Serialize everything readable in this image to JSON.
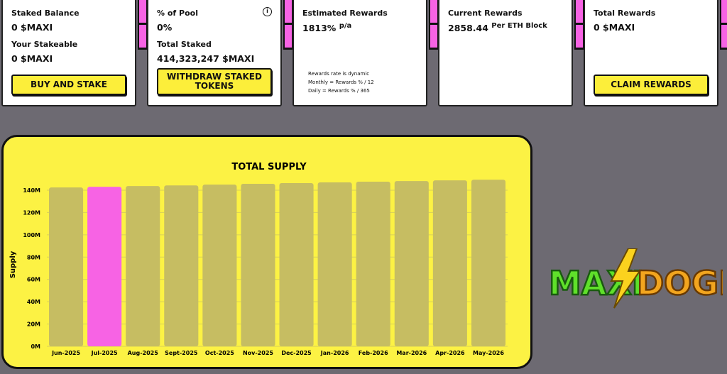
{
  "cards": {
    "staked": {
      "label": "Staked Balance",
      "value": "0 $MAXI",
      "label2": "Your Stakeable",
      "value2": "0 $MAXI",
      "button": "BUY AND STAKE"
    },
    "pool": {
      "label": "% of Pool",
      "value": "0%",
      "label2": "Total Staked",
      "value2": "414,323,247 $MAXI",
      "button_line1": "WITHDRAW STAKED",
      "button_line2": "TOKENS",
      "info_icon": "info-icon"
    },
    "estimated": {
      "label": "Estimated Rewards",
      "value": "1813%",
      "unit": "p/a",
      "note1": "Rewards rate is dynamic",
      "note2": "Monthly = Rewards % / 12",
      "note3": "Daily = Rewards % / 365"
    },
    "current": {
      "label": "Current Rewards",
      "value": "2858.44",
      "unit": "Per ETH Block"
    },
    "total": {
      "label": "Total Rewards",
      "value": "0 $MAXI",
      "button": "CLAIM REWARDS"
    }
  },
  "logo": {
    "text1": "MAXI",
    "text2": "DOGE"
  },
  "colors": {
    "accent_yellow": "#fcee3a",
    "highlight_pink": "#f763e4",
    "bar": "#c6bd62",
    "background": "#6d6a72"
  },
  "chart_data": {
    "type": "bar",
    "title": "TOTAL SUPPLY",
    "xlabel": "",
    "ylabel": "Supply",
    "ylim": [
      0,
      140000000
    ],
    "yticks": [
      "0M",
      "20M",
      "40M",
      "60M",
      "80M",
      "100M",
      "120M",
      "140M"
    ],
    "categories": [
      "Jun-2025",
      "Jul-2025",
      "Aug-2025",
      "Sept-2025",
      "Oct-2025",
      "Nov-2025",
      "Dec-2025",
      "Jan-2026",
      "Feb-2026",
      "Mar-2026",
      "Apr-2026",
      "May-2026"
    ],
    "values": [
      142500000,
      143000000,
      143700000,
      144300000,
      145000000,
      145700000,
      146400000,
      147000000,
      147600000,
      148200000,
      148800000,
      149400000
    ],
    "highlighted_category": "Jul-2025",
    "grid": true
  }
}
